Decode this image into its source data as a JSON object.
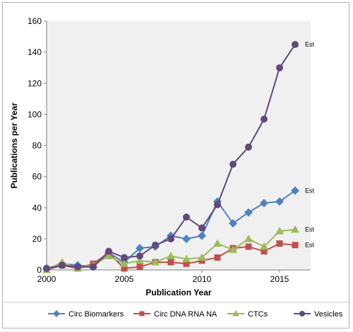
{
  "chart_data": {
    "type": "line",
    "xlabel": "Publication Year",
    "ylabel": "Publications per Year",
    "xlim": [
      2000,
      2017
    ],
    "ylim": [
      0,
      160
    ],
    "xticks": [
      2000,
      2005,
      2010,
      2015
    ],
    "yticks": [
      0,
      20,
      40,
      60,
      80,
      100,
      120,
      140,
      160
    ],
    "grid": false,
    "legend_position": "bottom",
    "plot_background": "#f0f0f0",
    "series": [
      {
        "name": "Circ Biomarkers",
        "color": "#4f81bd",
        "marker": "diamond",
        "x": [
          2000,
          2001,
          2002,
          2003,
          2004,
          2005,
          2006,
          2007,
          2008,
          2009,
          2010,
          2011,
          2012,
          2013,
          2014,
          2015,
          2016
        ],
        "values": [
          1,
          4,
          3,
          2,
          11,
          5,
          14,
          15,
          22,
          20,
          22,
          44,
          30,
          37,
          43,
          44,
          51
        ]
      },
      {
        "name": "Circ DNA RNA NA",
        "color": "#c0504d",
        "marker": "square",
        "x": [
          2000,
          2001,
          2002,
          2003,
          2004,
          2005,
          2006,
          2007,
          2008,
          2009,
          2010,
          2011,
          2012,
          2013,
          2014,
          2015,
          2016
        ],
        "values": [
          0,
          3,
          1,
          4,
          11,
          1,
          2,
          5,
          5,
          4,
          6,
          8,
          14,
          15,
          12,
          17,
          16
        ]
      },
      {
        "name": "CTCs",
        "color": "#9bbb59",
        "marker": "triangle",
        "x": [
          2000,
          2001,
          2002,
          2003,
          2004,
          2005,
          2006,
          2007,
          2008,
          2009,
          2010,
          2011,
          2012,
          2013,
          2014,
          2015,
          2016
        ],
        "values": [
          0,
          5,
          1,
          3,
          9,
          4,
          6,
          5,
          9,
          7,
          8,
          17,
          13,
          20,
          15,
          25,
          26
        ]
      },
      {
        "name": "Vesicles",
        "color": "#604a7b",
        "marker": "circle",
        "x": [
          2000,
          2001,
          2002,
          2003,
          2004,
          2005,
          2006,
          2007,
          2008,
          2009,
          2010,
          2011,
          2012,
          2013,
          2014,
          2015,
          2016
        ],
        "values": [
          1,
          3,
          2,
          2,
          12,
          8,
          9,
          16,
          20,
          34,
          27,
          42,
          68,
          79,
          97,
          130,
          145
        ]
      }
    ],
    "annotations": [
      {
        "text": "Est",
        "x": 2016,
        "y": 145
      },
      {
        "text": "Est",
        "x": 2016,
        "y": 51
      },
      {
        "text": "Est",
        "x": 2016,
        "y": 26
      },
      {
        "text": "Est",
        "x": 2016,
        "y": 16
      }
    ]
  }
}
